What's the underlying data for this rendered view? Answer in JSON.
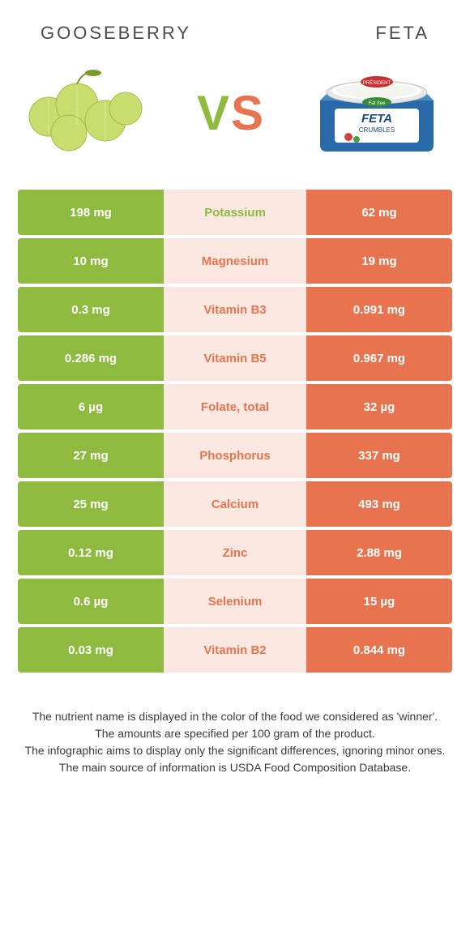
{
  "header": {
    "left": "GOOSEBERRY",
    "right": "FETA"
  },
  "vs": {
    "v": "V",
    "s": "S"
  },
  "colors": {
    "green": "#8dba3f",
    "orange": "#e8734f",
    "mid_bg": "#fbe9e1",
    "text": "#4a4a4a"
  },
  "rows": [
    {
      "left": "198 mg",
      "label": "Potassium",
      "right": "62 mg",
      "winner": "green"
    },
    {
      "left": "10 mg",
      "label": "Magnesium",
      "right": "19 mg",
      "winner": "orange"
    },
    {
      "left": "0.3 mg",
      "label": "Vitamin B3",
      "right": "0.991 mg",
      "winner": "orange"
    },
    {
      "left": "0.286 mg",
      "label": "Vitamin B5",
      "right": "0.967 mg",
      "winner": "orange"
    },
    {
      "left": "6 µg",
      "label": "Folate, total",
      "right": "32 µg",
      "winner": "orange"
    },
    {
      "left": "27 mg",
      "label": "Phosphorus",
      "right": "337 mg",
      "winner": "orange"
    },
    {
      "left": "25 mg",
      "label": "Calcium",
      "right": "493 mg",
      "winner": "orange"
    },
    {
      "left": "0.12 mg",
      "label": "Zinc",
      "right": "2.88 mg",
      "winner": "orange"
    },
    {
      "left": "0.6 µg",
      "label": "Selenium",
      "right": "15 µg",
      "winner": "orange"
    },
    {
      "left": "0.03 mg",
      "label": "Vitamin B2",
      "right": "0.844 mg",
      "winner": "orange"
    }
  ],
  "footer": {
    "line1": "The nutrient name is displayed in the color of the food we considered as 'winner'.",
    "line2": "The amounts are specified per 100 gram of the product.",
    "line3": "The infographic aims to display only the significant differences, ignoring minor ones.",
    "line4": "The main source of information is USDA Food Composition Database."
  }
}
